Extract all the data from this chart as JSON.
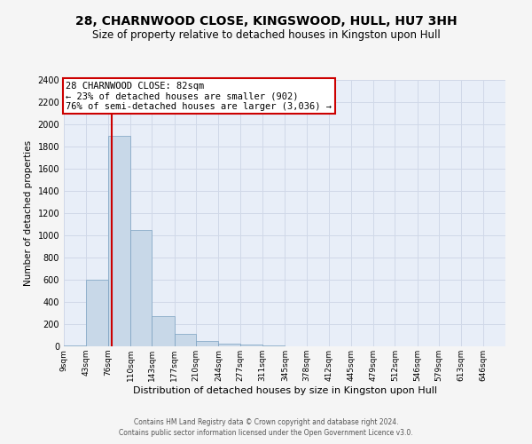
{
  "title1": "28, CHARNWOOD CLOSE, KINGSWOOD, HULL, HU7 3HH",
  "title2": "Size of property relative to detached houses in Kingston upon Hull",
  "xlabel": "Distribution of detached houses by size in Kingston upon Hull",
  "ylabel": "Number of detached properties",
  "footer1": "Contains HM Land Registry data © Crown copyright and database right 2024.",
  "footer2": "Contains public sector information licensed under the Open Government Licence v3.0.",
  "annotation_title": "28 CHARNWOOD CLOSE: 82sqm",
  "annotation_line1": "← 23% of detached houses are smaller (902)",
  "annotation_line2": "76% of semi-detached houses are larger (3,036) →",
  "property_size": 82,
  "bar_color": "#c8d8e8",
  "bar_edge_color": "#7aa0c0",
  "vline_color": "#cc0000",
  "annotation_box_color": "#ffffff",
  "annotation_box_edge": "#cc0000",
  "bin_edges": [
    9,
    43,
    76,
    110,
    143,
    177,
    210,
    244,
    277,
    311,
    345,
    378,
    412,
    445,
    479,
    512,
    546,
    579,
    613,
    646,
    680
  ],
  "bar_heights": [
    10,
    600,
    1900,
    1050,
    270,
    110,
    45,
    25,
    20,
    5,
    2,
    1,
    1,
    0,
    0,
    0,
    0,
    0,
    0,
    0
  ],
  "ylim": [
    0,
    2400
  ],
  "yticks": [
    0,
    200,
    400,
    600,
    800,
    1000,
    1200,
    1400,
    1600,
    1800,
    2000,
    2200,
    2400
  ],
  "grid_color": "#d0d8e8",
  "bg_color": "#e8eef8",
  "fig_bg_color": "#f5f5f5",
  "title_fontsize": 10,
  "subtitle_fontsize": 8.5,
  "ylabel_fontsize": 7.5,
  "xlabel_fontsize": 8,
  "tick_fontsize": 6.5,
  "ytick_fontsize": 7,
  "footer_fontsize": 5.5,
  "ann_fontsize": 7.5
}
